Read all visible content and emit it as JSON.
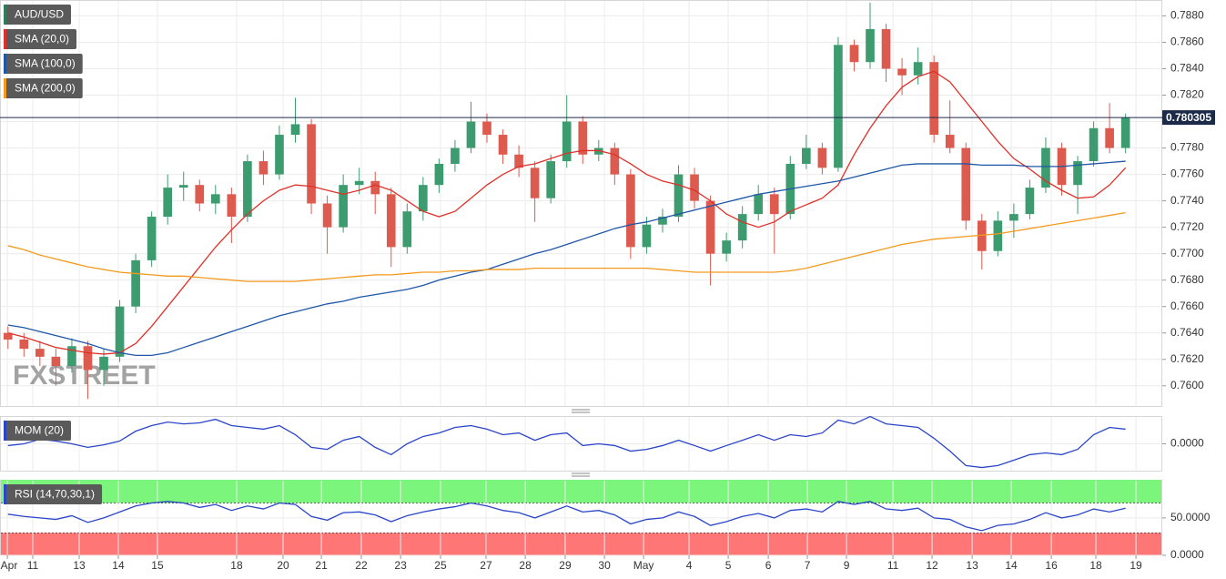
{
  "chart_data": [
    {
      "type": "candlestick",
      "name": "AUD/USD",
      "color": "#2f7d5c",
      "up_color": "#3d9b70",
      "down_color": "#dd5a4e",
      "watermark": "FXSTREET",
      "grid": true,
      "last_price": 0.780305,
      "last_price_color": "#1c2a4a",
      "xlim": [
        -0.5,
        72.3
      ],
      "ylim": [
        0.7584,
        0.7892
      ],
      "yticks": [
        {
          "value": 0.76,
          "label": "0.7600"
        },
        {
          "value": 0.762,
          "label": "0.7620"
        },
        {
          "value": 0.764,
          "label": "0.7640"
        },
        {
          "value": 0.766,
          "label": "0.7660"
        },
        {
          "value": 0.768,
          "label": "0.7680"
        },
        {
          "value": 0.77,
          "label": "0.7700"
        },
        {
          "value": 0.772,
          "label": "0.7720"
        },
        {
          "value": 0.774,
          "label": "0.7740"
        },
        {
          "value": 0.776,
          "label": "0.7760"
        },
        {
          "value": 0.778,
          "label": "0.7780"
        },
        {
          "value": 0.78,
          "label": "0.7800"
        },
        {
          "value": 0.782,
          "label": "0.7820"
        },
        {
          "value": 0.784,
          "label": "0.7840"
        },
        {
          "value": 0.786,
          "label": "0.7860"
        },
        {
          "value": 0.788,
          "label": "0.7880"
        }
      ],
      "open": [
        0.764,
        0.7635,
        0.7628,
        0.7622,
        0.7615,
        0.763,
        0.7612,
        0.7622,
        0.766,
        0.7695,
        0.7728,
        0.775,
        0.7752,
        0.7738,
        0.7745,
        0.7728,
        0.777,
        0.776,
        0.779,
        0.7798,
        0.7738,
        0.772,
        0.7752,
        0.7755,
        0.7745,
        0.7705,
        0.7732,
        0.7752,
        0.7768,
        0.778,
        0.78,
        0.779,
        0.7775,
        0.7765,
        0.7742,
        0.777,
        0.78,
        0.7775,
        0.778,
        0.776,
        0.7705,
        0.7722,
        0.7728,
        0.776,
        0.774,
        0.77,
        0.771,
        0.773,
        0.7745,
        0.773,
        0.7768,
        0.778,
        0.7765,
        0.7858,
        0.7845,
        0.787,
        0.784,
        0.7835,
        0.7845,
        0.779,
        0.778,
        0.7725,
        0.7702,
        0.7725,
        0.773,
        0.775,
        0.778,
        0.7752,
        0.777,
        0.7795,
        0.778
      ],
      "high": [
        0.7645,
        0.764,
        0.7634,
        0.7628,
        0.7636,
        0.7634,
        0.7628,
        0.7665,
        0.77,
        0.7732,
        0.776,
        0.7762,
        0.7756,
        0.7752,
        0.775,
        0.7775,
        0.7778,
        0.7797,
        0.7818,
        0.7802,
        0.7744,
        0.776,
        0.7765,
        0.7762,
        0.775,
        0.7738,
        0.7758,
        0.7772,
        0.7786,
        0.7815,
        0.7806,
        0.7794,
        0.7782,
        0.777,
        0.7775,
        0.782,
        0.7804,
        0.7786,
        0.7784,
        0.7764,
        0.7728,
        0.7734,
        0.7767,
        0.7765,
        0.7744,
        0.7716,
        0.7736,
        0.7752,
        0.775,
        0.7774,
        0.779,
        0.7784,
        0.7864,
        0.7862,
        0.789,
        0.7874,
        0.7848,
        0.7856,
        0.785,
        0.7816,
        0.7784,
        0.773,
        0.7732,
        0.7738,
        0.7756,
        0.7788,
        0.7784,
        0.7774,
        0.78,
        0.7814,
        0.7806
      ],
      "low": [
        0.7628,
        0.7622,
        0.7615,
        0.76,
        0.761,
        0.759,
        0.76,
        0.7618,
        0.7655,
        0.769,
        0.7722,
        0.774,
        0.7732,
        0.773,
        0.7708,
        0.7724,
        0.7752,
        0.7756,
        0.7784,
        0.773,
        0.77,
        0.7716,
        0.7745,
        0.773,
        0.769,
        0.77,
        0.7725,
        0.7746,
        0.7762,
        0.7776,
        0.7784,
        0.7768,
        0.7758,
        0.7724,
        0.7738,
        0.7765,
        0.7768,
        0.777,
        0.7752,
        0.7696,
        0.77,
        0.7716,
        0.7724,
        0.7734,
        0.7676,
        0.7694,
        0.7704,
        0.7725,
        0.77,
        0.7726,
        0.7764,
        0.776,
        0.7762,
        0.7838,
        0.784,
        0.783,
        0.782,
        0.7828,
        0.7784,
        0.7776,
        0.7718,
        0.7688,
        0.7698,
        0.7712,
        0.7726,
        0.7746,
        0.7744,
        0.773,
        0.7766,
        0.7776,
        0.7776
      ],
      "close": [
        0.7635,
        0.7628,
        0.7622,
        0.7615,
        0.763,
        0.7612,
        0.7622,
        0.766,
        0.7695,
        0.7728,
        0.775,
        0.7752,
        0.7738,
        0.7745,
        0.7728,
        0.777,
        0.776,
        0.779,
        0.7798,
        0.7738,
        0.772,
        0.7752,
        0.7755,
        0.7745,
        0.7705,
        0.7732,
        0.7752,
        0.7768,
        0.778,
        0.78,
        0.779,
        0.7775,
        0.7765,
        0.7742,
        0.777,
        0.78,
        0.7775,
        0.778,
        0.776,
        0.7705,
        0.7722,
        0.7728,
        0.776,
        0.774,
        0.77,
        0.771,
        0.773,
        0.7745,
        0.773,
        0.7768,
        0.778,
        0.7765,
        0.7858,
        0.7845,
        0.787,
        0.784,
        0.7835,
        0.7845,
        0.779,
        0.778,
        0.7725,
        0.7702,
        0.7725,
        0.773,
        0.775,
        0.778,
        0.7752,
        0.777,
        0.7795,
        0.778,
        0.7803
      ],
      "series": [
        {
          "name": "SMA (20,0)",
          "color": "#e0302a",
          "values": [
            0.764,
            0.7637,
            0.7633,
            0.7629,
            0.7627,
            0.7625,
            0.7624,
            0.7625,
            0.7632,
            0.7645,
            0.766,
            0.7675,
            0.769,
            0.7705,
            0.7718,
            0.773,
            0.774,
            0.7748,
            0.7752,
            0.7751,
            0.7748,
            0.7745,
            0.7748,
            0.7752,
            0.7748,
            0.774,
            0.7732,
            0.7728,
            0.7732,
            0.7742,
            0.7752,
            0.776,
            0.7766,
            0.7768,
            0.7772,
            0.7776,
            0.7778,
            0.7778,
            0.7775,
            0.7768,
            0.776,
            0.7755,
            0.7752,
            0.7748,
            0.774,
            0.773,
            0.7724,
            0.772,
            0.7724,
            0.7732,
            0.7737,
            0.7742,
            0.7752,
            0.7775,
            0.7795,
            0.7812,
            0.7826,
            0.7834,
            0.7838,
            0.783,
            0.7815,
            0.78,
            0.7785,
            0.7772,
            0.7764,
            0.7755,
            0.7748,
            0.7742,
            0.7743,
            0.7752,
            0.7765
          ]
        },
        {
          "name": "SMA (100,0)",
          "color": "#1f56a8",
          "values": [
            0.7646,
            0.7644,
            0.7641,
            0.7638,
            0.7635,
            0.7632,
            0.7628,
            0.7625,
            0.7623,
            0.7623,
            0.7625,
            0.7629,
            0.7633,
            0.7637,
            0.7641,
            0.7645,
            0.7649,
            0.7653,
            0.7656,
            0.7659,
            0.7662,
            0.7664,
            0.7667,
            0.7669,
            0.7671,
            0.7673,
            0.7676,
            0.768,
            0.7683,
            0.7686,
            0.7688,
            0.7692,
            0.7696,
            0.77,
            0.7703,
            0.7707,
            0.7711,
            0.7715,
            0.7719,
            0.7722,
            0.7724,
            0.7727,
            0.773,
            0.7733,
            0.7736,
            0.7739,
            0.7742,
            0.7745,
            0.7747,
            0.7749,
            0.7751,
            0.7753,
            0.7755,
            0.7758,
            0.7761,
            0.7764,
            0.7767,
            0.7768,
            0.7768,
            0.7768,
            0.7768,
            0.7767,
            0.7767,
            0.7767,
            0.7766,
            0.7766,
            0.7766,
            0.7767,
            0.7768,
            0.7769,
            0.777
          ]
        },
        {
          "name": "SMA (200,0)",
          "color": "#f39a1e",
          "values": [
            0.7706,
            0.7703,
            0.7699,
            0.7696,
            0.7693,
            0.769,
            0.7688,
            0.7686,
            0.7685,
            0.7684,
            0.7683,
            0.7683,
            0.7682,
            0.7681,
            0.768,
            0.7679,
            0.7679,
            0.7679,
            0.7679,
            0.768,
            0.7681,
            0.7682,
            0.7683,
            0.7684,
            0.7684,
            0.7685,
            0.7686,
            0.7686,
            0.7687,
            0.7687,
            0.7688,
            0.7688,
            0.7688,
            0.7689,
            0.7689,
            0.7689,
            0.7689,
            0.7689,
            0.7689,
            0.7689,
            0.7689,
            0.7688,
            0.7687,
            0.7686,
            0.7686,
            0.7686,
            0.7686,
            0.7686,
            0.7686,
            0.7687,
            0.7689,
            0.7692,
            0.7695,
            0.7698,
            0.7701,
            0.7704,
            0.7707,
            0.7709,
            0.7711,
            0.7712,
            0.7713,
            0.7714,
            0.7715,
            0.7717,
            0.7719,
            0.7721,
            0.7723,
            0.7725,
            0.7727,
            0.7729,
            0.7731
          ]
        }
      ]
    },
    {
      "type": "line",
      "grid": true,
      "xlim": [
        -0.5,
        72.3
      ],
      "ylim": [
        -0.011,
        0.011
      ],
      "yticks": [
        {
          "value": 0,
          "label": "0.0000"
        }
      ],
      "series": [
        {
          "name": "MOM (20)",
          "color": "#2b45c8",
          "values": [
            -0.0007,
            0,
            0.0018,
            0.0011,
            0,
            -0.0014,
            -0.0004,
            0.0011,
            0.005,
            0.0072,
            0.0086,
            0.0079,
            0.0083,
            0.0097,
            0.0072,
            0.0065,
            0.0058,
            0.0072,
            0.0036,
            -0.0014,
            -0.0022,
            0.0014,
            0.0029,
            -0.0014,
            -0.0043,
            0,
            0.0029,
            0.0043,
            0.0065,
            0.0072,
            0.0058,
            0.0036,
            0.0043,
            0.0014,
            0.0036,
            0.0043,
            -0.0007,
            0,
            -0.0007,
            -0.0029,
            -0.0022,
            -0.0007,
            0.0014,
            -0.0007,
            -0.0029,
            -0.0007,
            0.0014,
            0.0036,
            0.0014,
            0.0036,
            0.0029,
            0.0043,
            0.0094,
            0.0079,
            0.0108,
            0.0079,
            0.0072,
            0.0065,
            0.0022,
            -0.0029,
            -0.0086,
            -0.0094,
            -0.0086,
            -0.0065,
            -0.0043,
            -0.0036,
            -0.0043,
            -0.0022,
            0.0036,
            0.0065,
            0.0058
          ]
        }
      ]
    },
    {
      "type": "line",
      "grid": true,
      "xlim": [
        -0.5,
        72.3
      ],
      "ylim": [
        0,
        101
      ],
      "yticks": [
        {
          "value": 0,
          "label": "0.0000"
        },
        {
          "value": 50,
          "label": "50.0000"
        }
      ],
      "upper_band": 70,
      "upper_band_color": "#7cf57c",
      "lower_band": 30,
      "lower_band_color": "#ff7676",
      "xticks": [
        {
          "value": -0.04,
          "label": "Apr"
        },
        {
          "value": 1.55,
          "label": "11"
        },
        {
          "value": 4.46,
          "label": "13"
        },
        {
          "value": 6.91,
          "label": "14"
        },
        {
          "value": 9.36,
          "label": "15"
        },
        {
          "value": 14.32,
          "label": "18"
        },
        {
          "value": 17.23,
          "label": "20"
        },
        {
          "value": 19.63,
          "label": "21"
        },
        {
          "value": 22.13,
          "label": "22"
        },
        {
          "value": 24.59,
          "label": "23"
        },
        {
          "value": 27.09,
          "label": "25"
        },
        {
          "value": 29.94,
          "label": "27"
        },
        {
          "value": 32.4,
          "label": "28"
        },
        {
          "value": 34.9,
          "label": "29"
        },
        {
          "value": 37.36,
          "label": "30"
        },
        {
          "value": 39.81,
          "label": "May"
        },
        {
          "value": 42.66,
          "label": "4"
        },
        {
          "value": 45.11,
          "label": "5"
        },
        {
          "value": 47.62,
          "label": "6"
        },
        {
          "value": 50.07,
          "label": "7"
        },
        {
          "value": 52.52,
          "label": "9"
        },
        {
          "value": 55.43,
          "label": "11"
        },
        {
          "value": 57.88,
          "label": "12"
        },
        {
          "value": 60.39,
          "label": "13"
        },
        {
          "value": 62.84,
          "label": "14"
        },
        {
          "value": 65.35,
          "label": "16"
        },
        {
          "value": 68.14,
          "label": "18"
        },
        {
          "value": 70.65,
          "label": "19"
        }
      ],
      "series": [
        {
          "name": "RSI (14,70,30,1)",
          "color": "#2b45c8",
          "values": [
            55,
            52,
            50,
            48,
            53,
            44,
            50,
            58,
            66,
            70,
            72,
            70,
            64,
            68,
            60,
            66,
            62,
            70,
            68,
            52,
            47,
            57,
            58,
            54,
            45,
            53,
            58,
            62,
            65,
            70,
            66,
            60,
            57,
            50,
            58,
            66,
            58,
            60,
            54,
            42,
            48,
            50,
            58,
            52,
            40,
            45,
            52,
            56,
            50,
            60,
            62,
            58,
            72,
            68,
            72,
            62,
            60,
            63,
            50,
            48,
            38,
            33,
            40,
            42,
            48,
            57,
            50,
            54,
            62,
            58,
            63
          ]
        }
      ]
    }
  ]
}
